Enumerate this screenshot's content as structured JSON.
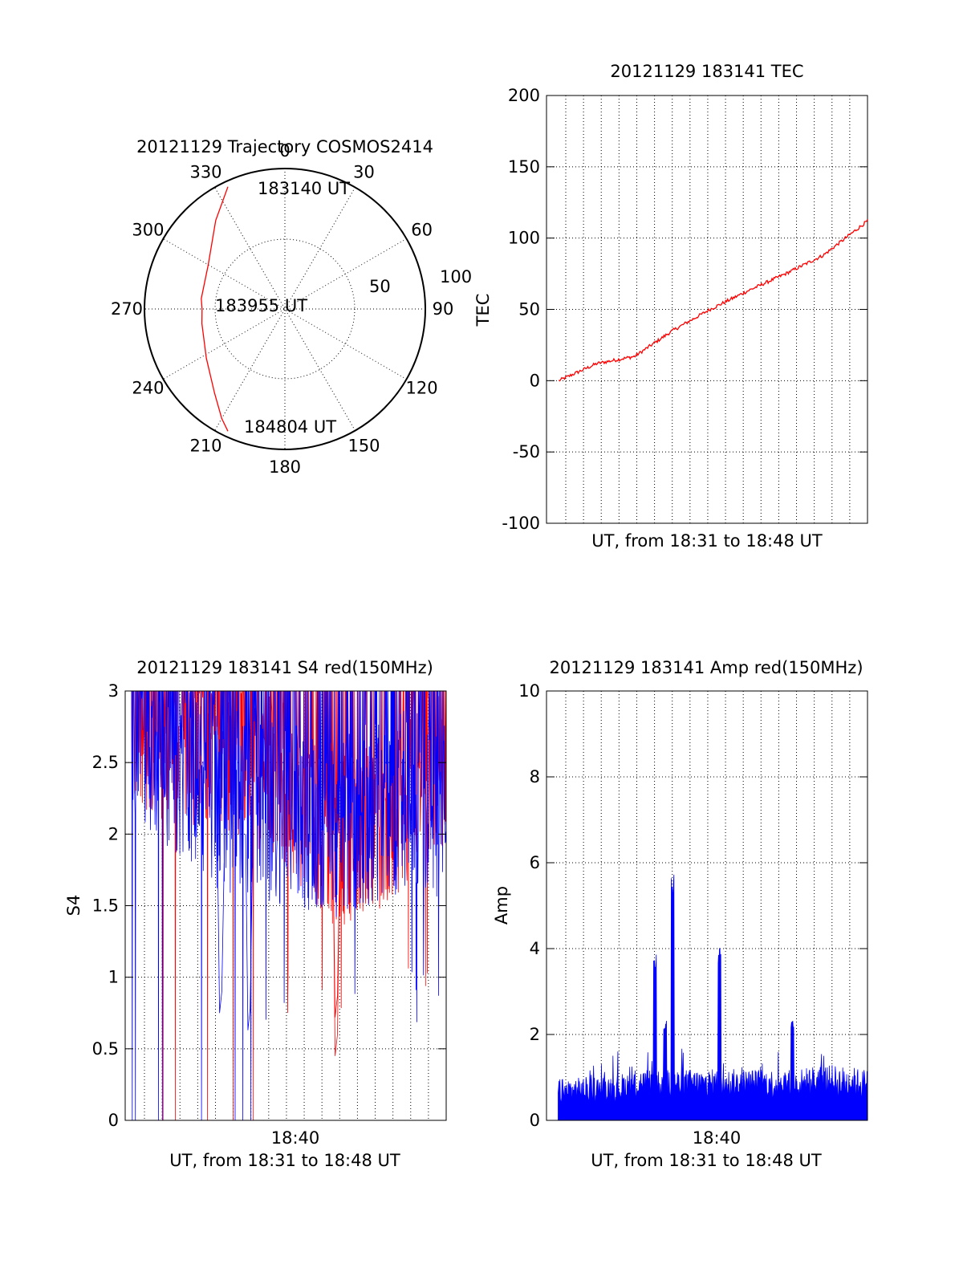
{
  "chart_data": [
    {
      "id": "polar",
      "type": "scatter",
      "title": "20121129 Trajectory COSMOS2414",
      "azimuth_labels": [
        "0",
        "30",
        "60",
        "90",
        "120",
        "150",
        "180",
        "210",
        "240",
        "270",
        "300",
        "330"
      ],
      "radial_labels": [
        "50",
        "100"
      ],
      "rlim": [
        0,
        100
      ],
      "grid": true,
      "color": "#ff0000",
      "trajectory": {
        "azimuth_deg": [
          335,
          322,
          300,
          277,
          270,
          260,
          238,
          220,
          210,
          205
        ],
        "radius": [
          96,
          80,
          63,
          60,
          59,
          60,
          66,
          78,
          90,
          96
        ]
      },
      "annotations": [
        {
          "text": "183140 UT",
          "az": 335,
          "r": 96
        },
        {
          "text": "183955 UT",
          "az": 270,
          "r": 59
        },
        {
          "text": "184804 UT",
          "az": 205,
          "r": 96
        }
      ]
    },
    {
      "id": "tec",
      "type": "line",
      "title": "20121129 183141 TEC",
      "xlabel": "UT, from 18:31 to 18:48 UT",
      "ylabel": "TEC",
      "xlim": [
        18.5167,
        18.8
      ],
      "ylim": [
        -100,
        200
      ],
      "y_ticks": [
        "200",
        "150",
        "100",
        "50",
        "0",
        "-50",
        "-100"
      ],
      "x_tick_labels": [],
      "grid": true,
      "color": "#ff0000",
      "x": [
        18.5276,
        18.5611,
        18.5944,
        18.6278,
        18.6611,
        18.6944,
        18.7278,
        18.7611,
        18.8
      ],
      "y": [
        0,
        12,
        17,
        35,
        50,
        63,
        75,
        88,
        112
      ]
    },
    {
      "id": "s4",
      "type": "line",
      "title": "20121129 183141 S4 red(150MHz)",
      "xlabel": "UT, from 18:31 to 18:48 UT",
      "ylabel": "S4",
      "xlim": [
        18.5167,
        18.8
      ],
      "ylim": [
        0,
        3
      ],
      "y_ticks": [
        "3",
        "2.5",
        "2",
        "1.5",
        "1",
        "0.5",
        "0"
      ],
      "x_tick_labels": [
        "18:40"
      ],
      "grid": true,
      "series_colors": [
        "#ff0000",
        "#0000ff"
      ],
      "levels_x": [
        18.52,
        18.56,
        18.6,
        18.64,
        18.66,
        18.7,
        18.74,
        18.78,
        18.8
      ],
      "levels_red": [
        2.6,
        2.4,
        2.4,
        2.2,
        2.1,
        1.7,
        1.8,
        2.1,
        2.3
      ],
      "levels_blue": [
        2.5,
        2.2,
        2.0,
        1.9,
        1.9,
        1.8,
        1.9,
        2.0,
        1.9
      ],
      "dips": [
        {
          "x": 18.598,
          "y": 0.75,
          "color": "#0000ff"
        },
        {
          "x": 18.623,
          "y": 0.63,
          "color": "#0000ff"
        },
        {
          "x": 18.7,
          "y": 0.45,
          "color": "#ff0000"
        },
        {
          "x": 18.7,
          "y": 0.72,
          "color": "#ff0000"
        }
      ]
    },
    {
      "id": "amp",
      "type": "line",
      "title": "20121129 183141 Amp red(150MHz)",
      "xlabel": "UT, from 18:31 to 18:48 UT",
      "ylabel": "Amp",
      "xlim": [
        18.5167,
        18.8
      ],
      "ylim": [
        0,
        10
      ],
      "y_ticks": [
        "10",
        "8",
        "6",
        "4",
        "2",
        "0"
      ],
      "x_tick_labels": [
        "18:40"
      ],
      "grid": true,
      "color": "#0000ff",
      "baseline_x": [
        18.527,
        18.58,
        18.6,
        18.63,
        18.7,
        18.74,
        18.76,
        18.8
      ],
      "baseline_y": [
        0.8,
        0.9,
        1.0,
        1.0,
        1.0,
        1.0,
        1.1,
        1.0
      ],
      "peaks": [
        {
          "x": 18.6124,
          "y": 3.9
        },
        {
          "x": 18.6214,
          "y": 2.4
        },
        {
          "x": 18.6279,
          "y": 5.8
        },
        {
          "x": 18.6695,
          "y": 4.2
        },
        {
          "x": 18.7338,
          "y": 2.4
        }
      ]
    }
  ]
}
